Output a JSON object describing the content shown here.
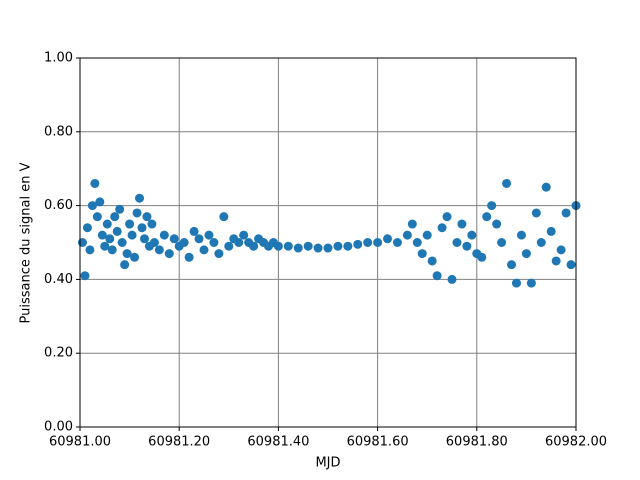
{
  "chart_data": {
    "type": "scatter",
    "xlabel": "MJD",
    "ylabel": "Puissance du signal en V",
    "xlim": [
      60981.0,
      60982.0
    ],
    "xticks": [
      {
        "value": 60981.0,
        "label": "60981.00"
      },
      {
        "value": 60981.2,
        "label": "60981.20"
      },
      {
        "value": 60981.4,
        "label": "60981.40"
      },
      {
        "value": 60981.6,
        "label": "60981.60"
      },
      {
        "value": 60981.8,
        "label": "60981.80"
      },
      {
        "value": 60982.0,
        "label": "60982.00"
      }
    ],
    "ylim": [
      0,
      1
    ],
    "yticks": [
      {
        "value": 0,
        "label": "0.00"
      },
      {
        "value": 0.2,
        "label": "0.20"
      },
      {
        "value": 0.4,
        "label": "0.40"
      },
      {
        "value": 0.6,
        "label": "0.60"
      },
      {
        "value": 0.8,
        "label": "0.80"
      },
      {
        "value": 1,
        "label": "1.00"
      }
    ],
    "grid": true,
    "series": [
      {
        "color": "#1f77b4",
        "x": [
          60981.005,
          60981.01,
          60981.015,
          60981.02,
          60981.025,
          60981.03,
          60981.035,
          60981.04,
          60981.045,
          60981.05,
          60981.055,
          60981.06,
          60981.065,
          60981.07,
          60981.075,
          60981.08,
          60981.085,
          60981.09,
          60981.095,
          60981.1,
          60981.105,
          60981.11,
          60981.115,
          60981.12,
          60981.125,
          60981.13,
          60981.135,
          60981.14,
          60981.145,
          60981.15,
          60981.16,
          60981.17,
          60981.18,
          60981.19,
          60981.2,
          60981.21,
          60981.22,
          60981.23,
          60981.24,
          60981.25,
          60981.26,
          60981.27,
          60981.28,
          60981.29,
          60981.3,
          60981.31,
          60981.32,
          60981.33,
          60981.34,
          60981.35,
          60981.36,
          60981.37,
          60981.38,
          60981.39,
          60981.4,
          60981.42,
          60981.44,
          60981.46,
          60981.48,
          60981.5,
          60981.52,
          60981.54,
          60981.56,
          60981.58,
          60981.6,
          60981.62,
          60981.64,
          60981.66,
          60981.67,
          60981.68,
          60981.69,
          60981.7,
          60981.71,
          60981.72,
          60981.73,
          60981.74,
          60981.75,
          60981.76,
          60981.77,
          60981.78,
          60981.79,
          60981.8,
          60981.81,
          60981.82,
          60981.83,
          60981.84,
          60981.85,
          60981.86,
          60981.87,
          60981.88,
          60981.89,
          60981.9,
          60981.91,
          60981.92,
          60981.93,
          60981.94,
          60981.95,
          60981.96,
          60981.97,
          60981.98,
          60981.99,
          60982.0
        ],
        "values": [
          0.5,
          0.41,
          0.54,
          0.48,
          0.6,
          0.66,
          0.57,
          0.61,
          0.52,
          0.49,
          0.55,
          0.51,
          0.48,
          0.57,
          0.53,
          0.59,
          0.5,
          0.44,
          0.47,
          0.55,
          0.52,
          0.46,
          0.58,
          0.62,
          0.54,
          0.51,
          0.57,
          0.49,
          0.55,
          0.5,
          0.48,
          0.52,
          0.47,
          0.51,
          0.49,
          0.5,
          0.46,
          0.53,
          0.51,
          0.48,
          0.52,
          0.5,
          0.47,
          0.57,
          0.49,
          0.51,
          0.5,
          0.52,
          0.5,
          0.49,
          0.51,
          0.5,
          0.49,
          0.5,
          0.49,
          0.49,
          0.485,
          0.49,
          0.485,
          0.485,
          0.49,
          0.49,
          0.495,
          0.5,
          0.5,
          0.51,
          0.5,
          0.52,
          0.55,
          0.5,
          0.47,
          0.52,
          0.45,
          0.41,
          0.54,
          0.57,
          0.4,
          0.5,
          0.55,
          0.49,
          0.52,
          0.47,
          0.46,
          0.57,
          0.6,
          0.55,
          0.5,
          0.66,
          0.44,
          0.39,
          0.52,
          0.47,
          0.39,
          0.58,
          0.5,
          0.65,
          0.53,
          0.45,
          0.48,
          0.58,
          0.44,
          0.6
        ]
      }
    ]
  }
}
